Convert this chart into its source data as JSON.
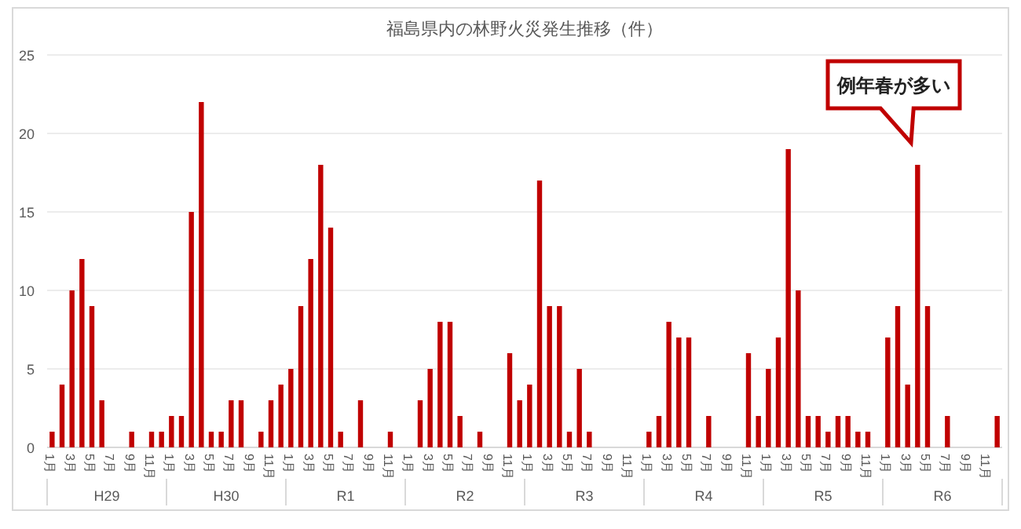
{
  "chart_data": {
    "type": "bar",
    "title": "福島県内の林野火災発生推移（件）",
    "categories": [
      "1月",
      null,
      "3月",
      null,
      "5月",
      null,
      "7月",
      null,
      "9月",
      null,
      "11月",
      null,
      "1月",
      null,
      "3月",
      null,
      "5月",
      null,
      "7月",
      null,
      "9月",
      null,
      "11月",
      null,
      "1月",
      null,
      "3月",
      null,
      "5月",
      null,
      "7月",
      null,
      "9月",
      null,
      "11月",
      null,
      "1月",
      null,
      "3月",
      null,
      "5月",
      null,
      "7月",
      null,
      "9月",
      null,
      "11月",
      null,
      "1月",
      null,
      "3月",
      null,
      "5月",
      null,
      "7月",
      null,
      "9月",
      null,
      "11月",
      null,
      "1月",
      null,
      "3月",
      null,
      "5月",
      null,
      "7月",
      null,
      "9月",
      null,
      "11月",
      null,
      "1月",
      null,
      "3月",
      null,
      "5月",
      null,
      "7月",
      null,
      "9月",
      null,
      "11月",
      null,
      "1月",
      null,
      "3月",
      null,
      "5月",
      null,
      "7月",
      null,
      "9月",
      null,
      "11月",
      null
    ],
    "values": [
      1,
      4,
      10,
      12,
      9,
      3,
      0,
      0,
      1,
      0,
      1,
      1,
      2,
      2,
      15,
      22,
      1,
      1,
      3,
      3,
      0,
      1,
      3,
      4,
      5,
      9,
      12,
      18,
      14,
      1,
      0,
      3,
      0,
      0,
      1,
      0,
      0,
      3,
      5,
      8,
      8,
      2,
      0,
      1,
      0,
      0,
      6,
      3,
      4,
      17,
      9,
      9,
      1,
      5,
      1,
      0,
      0,
      0,
      0,
      0,
      1,
      2,
      8,
      7,
      7,
      0,
      2,
      0,
      0,
      0,
      6,
      2,
      5,
      7,
      19,
      10,
      2,
      2,
      1,
      2,
      2,
      1,
      1,
      0,
      7,
      9,
      4,
      18,
      9,
      0,
      2,
      0,
      0,
      0,
      0,
      2
    ],
    "color": "#c00000",
    "ylim": [
      0,
      25
    ],
    "yticks": [
      0,
      5,
      10,
      15,
      20,
      25
    ],
    "grid": "y",
    "annotations": [
      "例年春が多い",
      "H29",
      "H30",
      "R1",
      "R2",
      "R3",
      "R4",
      "R5",
      "R6"
    ]
  }
}
